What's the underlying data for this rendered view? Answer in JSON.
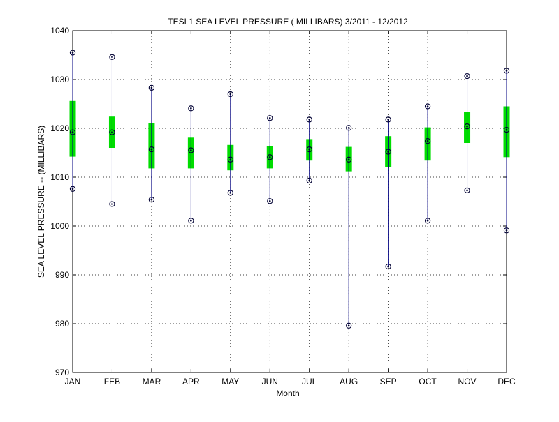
{
  "chart_data": {
    "type": "box",
    "title": "TESL1  SEA LEVEL PRESSURE ( MILLIBARS) 3/2011 - 12/2012",
    "xlabel": "Month",
    "ylabel": "SEA LEVEL PRESSURE -- (MILLIBARS)",
    "categories": [
      "JAN",
      "FEB",
      "MAR",
      "APR",
      "MAY",
      "JUN",
      "JUL",
      "AUG",
      "SEP",
      "OCT",
      "NOV",
      "DEC"
    ],
    "ylim": [
      970,
      1040
    ],
    "yticks": [
      970,
      980,
      990,
      1000,
      1010,
      1020,
      1030,
      1040
    ],
    "grid": true,
    "colors": {
      "whisker": "#000080",
      "box": "#00dd00",
      "marker": "#000033"
    },
    "series": [
      {
        "min": 1007.6,
        "q1": 1014.2,
        "median": 1019.2,
        "q3": 1025.6,
        "max": 1035.5
      },
      {
        "min": 1004.5,
        "q1": 1016.0,
        "median": 1019.2,
        "q3": 1022.4,
        "max": 1034.6
      },
      {
        "min": 1005.4,
        "q1": 1011.8,
        "median": 1015.7,
        "q3": 1021.0,
        "max": 1028.3
      },
      {
        "min": 1001.1,
        "q1": 1011.8,
        "median": 1015.5,
        "q3": 1018.1,
        "max": 1024.1
      },
      {
        "min": 1006.8,
        "q1": 1011.4,
        "median": 1013.6,
        "q3": 1016.6,
        "max": 1027.0
      },
      {
        "min": 1005.1,
        "q1": 1011.8,
        "median": 1014.1,
        "q3": 1016.4,
        "max": 1022.1
      },
      {
        "min": 1009.3,
        "q1": 1013.4,
        "median": 1015.7,
        "q3": 1017.8,
        "max": 1021.8
      },
      {
        "min": 979.6,
        "q1": 1011.2,
        "median": 1013.6,
        "q3": 1016.2,
        "max": 1020.1
      },
      {
        "min": 991.7,
        "q1": 1012.0,
        "median": 1015.2,
        "q3": 1018.4,
        "max": 1021.8
      },
      {
        "min": 1001.1,
        "q1": 1013.4,
        "median": 1017.4,
        "q3": 1020.2,
        "max": 1024.5
      },
      {
        "min": 1007.3,
        "q1": 1017.0,
        "median": 1020.4,
        "q3": 1023.4,
        "max": 1030.7
      },
      {
        "min": 999.1,
        "q1": 1014.1,
        "median": 1019.7,
        "q3": 1024.5,
        "max": 1031.8
      }
    ]
  }
}
